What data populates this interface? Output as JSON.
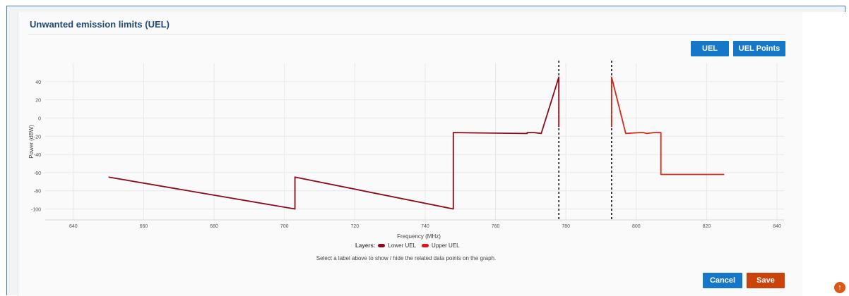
{
  "header": {
    "title": "Unwanted emission limits (UEL)"
  },
  "toolbar": {
    "uel_label": "UEL",
    "uel_points_label": "UEL Points"
  },
  "footer": {
    "cancel_label": "Cancel",
    "save_label": "Save"
  },
  "legend": {
    "title": "Layers:",
    "items": [
      {
        "label": "Lower UEL",
        "color": "#8b0a1a"
      },
      {
        "label": "Upper UEL",
        "color": "#e0121e"
      }
    ]
  },
  "hint": "Select a label above to show / hide the related data points on the graph.",
  "scroll_top_icon": "arrow-up-icon",
  "chart_data": {
    "type": "line",
    "xlabel": "Frequency (MHz)",
    "ylabel": "Power (dBW)",
    "xlim": [
      632,
      842
    ],
    "ylim": [
      -112,
      60
    ],
    "xticks": [
      640,
      660,
      680,
      700,
      720,
      740,
      760,
      780,
      800,
      820,
      840
    ],
    "yticks": [
      -100,
      -80,
      -60,
      -40,
      -20,
      0,
      20,
      40
    ],
    "grid": true,
    "vlines": [
      778,
      793
    ],
    "series": [
      {
        "name": "Lower UEL",
        "color": "#8b0a1a",
        "x": [
          650,
          703,
          703,
          748,
          748,
          768,
          769,
          769,
          771,
          773,
          778,
          778
        ],
        "y": [
          -65,
          -100,
          -65,
          -100,
          -16,
          -17,
          -17,
          -16,
          -16,
          -17,
          45,
          -10
        ]
      },
      {
        "name": "Upper UEL",
        "color": "#d42a1a",
        "x": [
          793,
          793,
          797,
          801,
          802,
          803,
          805,
          807,
          807,
          825
        ],
        "y": [
          -10,
          45,
          -17,
          -16,
          -16,
          -17,
          -16,
          -16,
          -62,
          -62
        ]
      }
    ]
  }
}
